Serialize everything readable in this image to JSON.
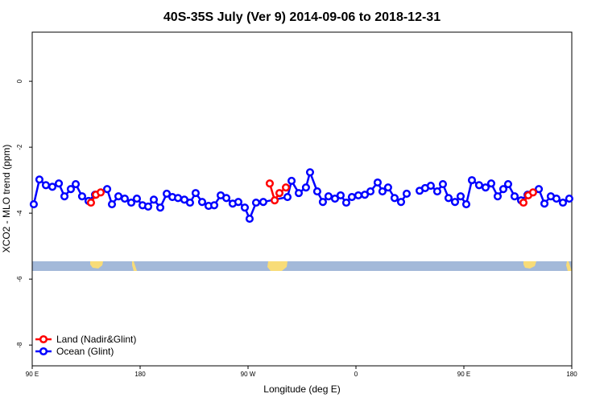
{
  "chart_data": {
    "type": "line",
    "title": "40S-35S July (Ver 9)   2014-09-06 to 2018-12-31",
    "x_label": "Longitude (deg E)",
    "y_label": "XCO2 - MLO trend (ppm)",
    "xlim": [
      90,
      540
    ],
    "ylim": [
      -8.63,
      1.49
    ],
    "xticks": [
      {
        "value": 90,
        "label": "90 E"
      },
      180,
      {
        "value": 270,
        "label": "90 W"
      },
      {
        "value": 360,
        "label": "0"
      },
      {
        "value": 450,
        "label": "90 E"
      },
      {
        "value": 540,
        "label": "180"
      }
    ],
    "yticks": [
      -8,
      -6,
      -4,
      -2,
      0
    ],
    "legend": "bottom-left",
    "series": [
      {
        "name": "Land (Nadir&Glint)",
        "color": "#ff0000",
        "x": [
          139.0,
          143.1,
          147.1,
          null,
          288.1,
          292.2,
          296.2,
          301.6,
          null,
          499.7,
          503.7,
          507.7
        ],
        "values": [
          -3.68,
          -3.44,
          -3.37,
          null,
          -3.1,
          -3.61,
          -3.39,
          -3.22,
          null,
          -3.68,
          -3.46,
          -3.37
        ]
      },
      {
        "name": "Ocean (Glint)",
        "color": "#0000ff",
        "x": [
          91.3,
          96.0,
          101.4,
          106.8,
          112.2,
          116.9,
          122.2,
          126.3,
          131.6,
          137.0,
          142.4,
          152.5,
          156.5,
          161.9,
          167.2,
          172.6,
          177.3,
          182.0,
          186.7,
          191.4,
          196.8,
          202.2,
          206.9,
          211.6,
          216.9,
          221.6,
          226.3,
          231.7,
          237.1,
          241.8,
          247.2,
          251.9,
          257.2,
          261.9,
          267.3,
          271.3,
          276.7,
          282.7,
          302.9,
          306.3,
          312.3,
          318.3,
          321.7,
          327.7,
          332.4,
          337.1,
          342.5,
          347.2,
          351.9,
          356.6,
          362.0,
          367.4,
          372.1,
          378.1,
          382.1,
          386.8,
          392.2,
          397.6,
          402.3,
          null,
          413.1,
          417.7,
          422.4,
          427.8,
          432.5,
          437.2,
          442.6,
          447.3,
          452.0,
          456.7,
          462.7,
          468.1,
          472.8,
          478.2,
          482.9,
          486.9,
          492.3,
          497.7,
          503.1,
          512.5,
          517.2,
          522.5,
          527.2,
          532.6,
          537.9
        ],
        "values": [
          -3.73,
          -2.98,
          -3.15,
          -3.2,
          -3.1,
          -3.49,
          -3.27,
          -3.12,
          -3.49,
          -3.63,
          -3.44,
          -3.27,
          -3.73,
          -3.49,
          -3.56,
          -3.68,
          -3.56,
          -3.76,
          -3.8,
          -3.59,
          -3.83,
          -3.41,
          -3.51,
          -3.54,
          -3.59,
          -3.68,
          -3.39,
          -3.66,
          -3.78,
          -3.76,
          -3.46,
          -3.54,
          -3.71,
          -3.66,
          -3.83,
          -4.17,
          -3.68,
          -3.66,
          -3.51,
          -3.02,
          -3.39,
          -3.22,
          -2.76,
          -3.34,
          -3.66,
          -3.49,
          -3.56,
          -3.46,
          -3.68,
          -3.51,
          -3.46,
          -3.44,
          -3.34,
          -3.07,
          -3.34,
          -3.22,
          -3.54,
          -3.66,
          -3.41,
          null,
          -3.32,
          -3.24,
          -3.17,
          -3.34,
          -3.12,
          -3.54,
          -3.66,
          -3.49,
          -3.73,
          -3.0,
          -3.15,
          -3.22,
          -3.1,
          -3.49,
          -3.27,
          -3.12,
          -3.49,
          -3.61,
          -3.44,
          -3.27,
          -3.71,
          -3.49,
          -3.56,
          -3.68,
          -3.56
        ]
      }
    ]
  }
}
